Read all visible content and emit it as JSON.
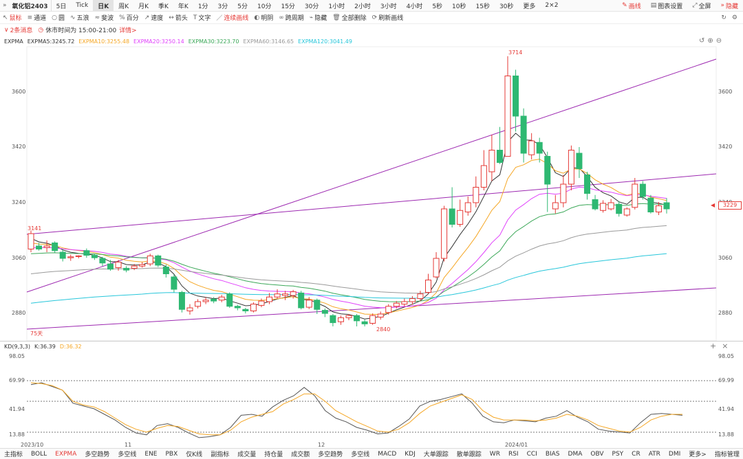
{
  "toolbar": {
    "symbol": "氧化铝2403",
    "periods": [
      "5日",
      "Tick",
      "日K",
      "周K",
      "月K",
      "季K",
      "年K",
      "1分",
      "3分",
      "5分",
      "10分",
      "15分",
      "30分",
      "1小时",
      "2小时",
      "3小时",
      "4小时",
      "5秒",
      "10秒",
      "15秒",
      "30秒",
      "更多"
    ],
    "active_period": "日K",
    "layout": "2×2",
    "draw": "画线",
    "settings": "图表设置",
    "fullscreen": "全屏",
    "hide": "隐藏"
  },
  "tools": [
    "鼠标",
    "通道",
    "圆",
    "五浪",
    "斐波",
    "百分",
    "速度",
    "箭头",
    "文字",
    "连续画线",
    "明阴",
    "跨周期",
    "隐藏",
    "全部删除",
    "刷新画线"
  ],
  "notice": {
    "msg": "2条消息",
    "time": "休市时间为 15:00-21:00",
    "detail": "详情>"
  },
  "main_legend": {
    "name": "EXPMA",
    "items": [
      {
        "label": "EXPMA5:3245.72",
        "color": "#333333"
      },
      {
        "label": "EXPMA10:3255.48",
        "color": "#f5a623"
      },
      {
        "label": "EXPMA20:3250.14",
        "color": "#e040fb"
      },
      {
        "label": "EXPMA30:3223.70",
        "color": "#3aa757"
      },
      {
        "label": "EXPMA60:3146.65",
        "color": "#999999"
      },
      {
        "label": "EXPMA120:3041.49",
        "color": "#26c6da"
      }
    ]
  },
  "main_axis": {
    "ticks": [
      "3600",
      "3420",
      "3240",
      "3060",
      "2880"
    ],
    "current_price": "3229"
  },
  "annotations": {
    "high": "3714",
    "low": "2840",
    "start": "3141",
    "days": "75天"
  },
  "kd_legend": {
    "name": "KD(9,3,3)",
    "k": "K:36.39",
    "d": "D:36.32"
  },
  "kd_axis": {
    "ticks": [
      "98.05",
      "69.99",
      "41.94",
      "13.88"
    ]
  },
  "x_axis": [
    "2023/10",
    "11",
    "12",
    "2024/01"
  ],
  "colors": {
    "up": "#e53935",
    "down": "#2eb872",
    "k": "#555555",
    "d": "#f5a623",
    "channel": "#9c27b0"
  },
  "bottom_tabs": [
    "主指标",
    "BOLL",
    "EXPMA",
    "多空趋势",
    "多空线",
    "ENE",
    "PBX",
    "仅K线",
    "副指标",
    "成交量",
    "持仓量",
    "成交额",
    "多空趋势",
    "多空线",
    "MACD",
    "KDJ",
    "大单跟踪",
    "散单跟踪",
    "WR",
    "RSI",
    "CCI",
    "BIAS",
    "DMA",
    "OBV",
    "PSY",
    "CR",
    "ATR",
    "DMI",
    "更多>",
    "指标管理"
  ],
  "active_bottom": "EXPMA"
}
